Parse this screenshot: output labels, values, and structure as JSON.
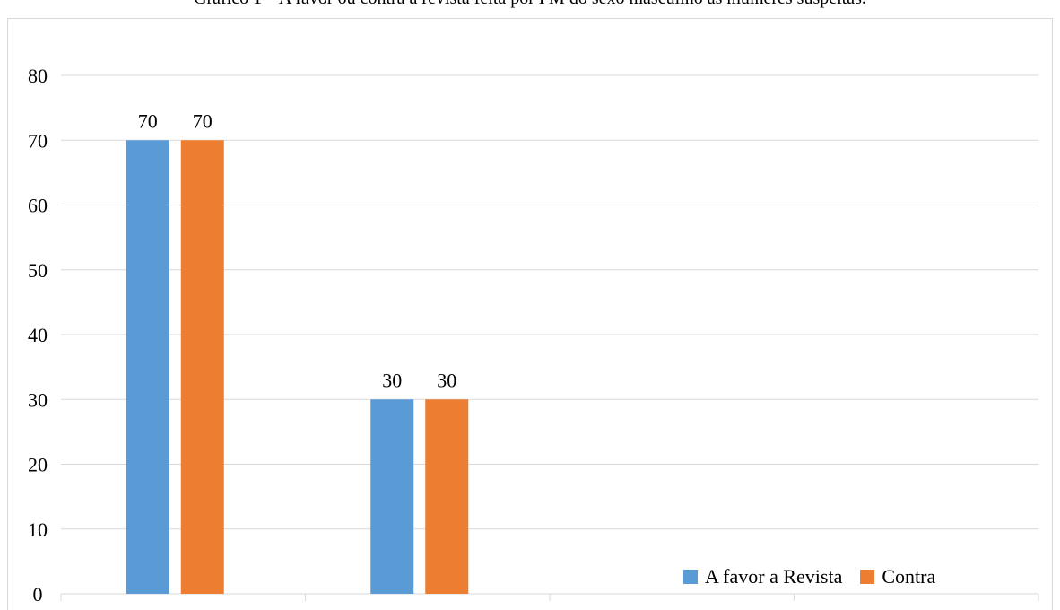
{
  "caption": "Gráfico 1 – A favor ou contra a revista feita por PM do sexo masculino às mulheres suspeitas.",
  "chart_data": {
    "type": "bar",
    "title": "Gráfico 1 – A favor ou contra a revista feita por PM do sexo masculino às mulheres suspeitas.",
    "categories": [
      "",
      "",
      "",
      ""
    ],
    "series": [
      {
        "name": "A favor a Revista",
        "color": "#5b9bd5",
        "values": [
          70,
          30,
          null,
          null
        ]
      },
      {
        "name": "Contra",
        "color": "#ed7d31",
        "values": [
          70,
          30,
          null,
          null
        ]
      }
    ],
    "ylim": [
      0,
      80
    ],
    "yticks": [
      0,
      10,
      20,
      30,
      40,
      50,
      60,
      70,
      80
    ],
    "data_labels": true,
    "grid": true,
    "legend_position": "bottom-right",
    "xlabel": "",
    "ylabel": ""
  }
}
